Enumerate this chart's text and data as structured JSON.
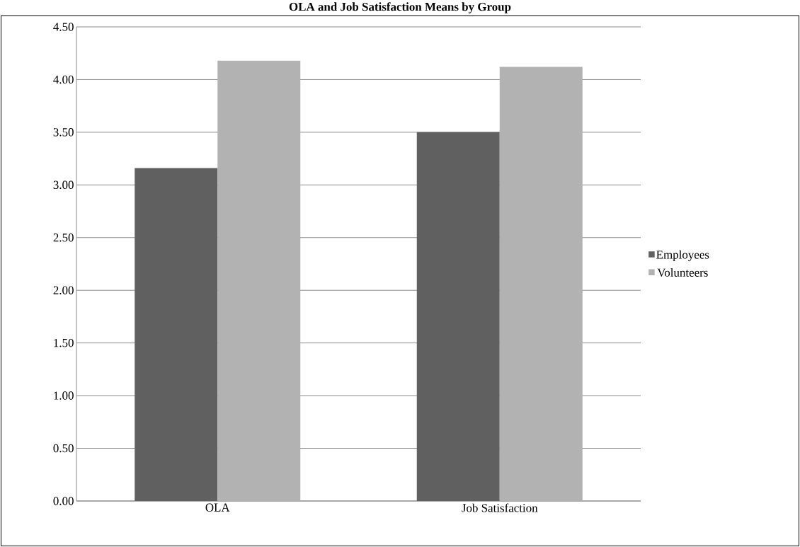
{
  "chart_data": {
    "type": "bar",
    "title": "OLA and Job Satisfaction Means by Group",
    "categories": [
      "OLA",
      "Job Satisfaction"
    ],
    "series": [
      {
        "name": "Employees",
        "color": "#606060",
        "values": [
          3.16,
          3.5
        ]
      },
      {
        "name": "Volunteers",
        "color": "#b2b2b2",
        "values": [
          4.18,
          4.12
        ]
      }
    ],
    "ylim": [
      0,
      4.5
    ],
    "yticks": [
      {
        "value": 0,
        "label": "0.00"
      },
      {
        "value": 0.5,
        "label": "0.50"
      },
      {
        "value": 1,
        "label": "1.00"
      },
      {
        "value": 1.5,
        "label": "1.50"
      },
      {
        "value": 2,
        "label": "2.00"
      },
      {
        "value": 2.5,
        "label": "2.50"
      },
      {
        "value": 3,
        "label": "3.00"
      },
      {
        "value": 3.5,
        "label": "3.50"
      },
      {
        "value": 4,
        "label": "4.00"
      },
      {
        "value": 4.5,
        "label": "4.50"
      }
    ],
    "grid": "y",
    "legend": "right"
  }
}
